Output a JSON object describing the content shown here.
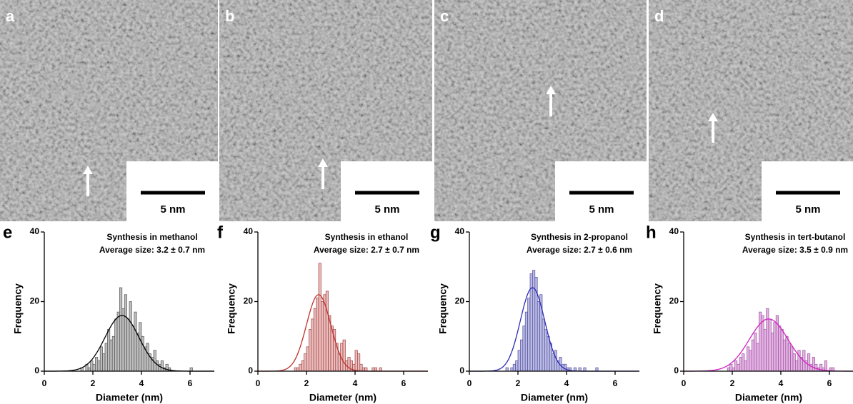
{
  "panels": [
    {
      "label": "a",
      "scale_bar": "5 nm"
    },
    {
      "label": "b",
      "scale_bar": "5 nm"
    },
    {
      "label": "c",
      "scale_bar": "5 nm"
    },
    {
      "label": "d",
      "scale_bar": "5 nm"
    }
  ],
  "chart_data": [
    {
      "type": "histogram",
      "label": "e",
      "title": "Synthesis in methanol",
      "subtitle": "Average size: 3.2 ± 0.7 nm",
      "xlabel": "Diameter (nm)",
      "ylabel": "Frequency",
      "bins": [
        1.2,
        1.3,
        1.4,
        1.5,
        1.6,
        1.7,
        1.8,
        1.9,
        2.0,
        2.1,
        2.2,
        2.3,
        2.4,
        2.5,
        2.6,
        2.7,
        2.8,
        2.9,
        3.0,
        3.1,
        3.2,
        3.3,
        3.4,
        3.5,
        3.6,
        3.7,
        3.8,
        3.9,
        4.0,
        4.1,
        4.2,
        4.3,
        4.4,
        4.5,
        4.6,
        4.7,
        4.8,
        4.9,
        5.0,
        5.1,
        5.2,
        5.3,
        5.4,
        5.5,
        5.6,
        5.7,
        5.8,
        5.9,
        6.0,
        6.1,
        6.2
      ],
      "counts": [
        0,
        0,
        0,
        1,
        0,
        2,
        1,
        3,
        2,
        4,
        3,
        7,
        5,
        8,
        12,
        9,
        10,
        15,
        17,
        24,
        18,
        22,
        15,
        20,
        13,
        17,
        11,
        14,
        10,
        7,
        8,
        5,
        4,
        6,
        3,
        2,
        3,
        1,
        2,
        1,
        0,
        0,
        0,
        0,
        0,
        0,
        0,
        0,
        1,
        0
      ],
      "color": "#bdbdbd",
      "edgecolor": "#555555",
      "fit": {
        "mean": 3.2,
        "sd": 0.7,
        "amplitude": 16,
        "color": "#000000"
      },
      "xlim": [
        0,
        7
      ],
      "ylim": [
        0,
        40
      ],
      "xticks": [
        0,
        2,
        4,
        6
      ],
      "yticks": [
        0,
        20,
        40
      ]
    },
    {
      "type": "histogram",
      "label": "f",
      "title": "Synthesis in ethanol",
      "subtitle": "Average size: 2.7 ± 0.7 nm",
      "xlabel": "Diameter (nm)",
      "ylabel": "Frequency",
      "bins": [
        1.2,
        1.3,
        1.4,
        1.5,
        1.6,
        1.7,
        1.8,
        1.9,
        2.0,
        2.1,
        2.2,
        2.3,
        2.4,
        2.5,
        2.6,
        2.7,
        2.8,
        2.9,
        3.0,
        3.1,
        3.2,
        3.3,
        3.4,
        3.5,
        3.6,
        3.7,
        3.8,
        3.9,
        4.0,
        4.1,
        4.2,
        4.3,
        4.4,
        4.5,
        4.6,
        4.7,
        4.8,
        4.9,
        5.0,
        5.1,
        5.2,
        5.3,
        5.4,
        5.5,
        5.6,
        5.7,
        5.8,
        5.9,
        6.0,
        6.1,
        6.2
      ],
      "counts": [
        0,
        0,
        0,
        1,
        1,
        2,
        3,
        5,
        7,
        12,
        15,
        18,
        21,
        31,
        20,
        22,
        23,
        16,
        13,
        12,
        8,
        5,
        8,
        9,
        3,
        4,
        3,
        2,
        6,
        5,
        2,
        1,
        1,
        0,
        0,
        1,
        1,
        0,
        1,
        0,
        0,
        0,
        0,
        0,
        0,
        0,
        0,
        0,
        0,
        0
      ],
      "color": "#eabcbc",
      "edgecolor": "#a04040",
      "fit": {
        "mean": 2.5,
        "sd": 0.5,
        "amplitude": 22,
        "color": "#c0302a"
      },
      "xlim": [
        0,
        7
      ],
      "ylim": [
        0,
        40
      ],
      "xticks": [
        0,
        2,
        4,
        6
      ],
      "yticks": [
        0,
        20,
        40
      ]
    },
    {
      "type": "histogram",
      "label": "g",
      "title": "Synthesis in 2-propanol",
      "subtitle": "Average size: 2.7 ± 0.6 nm",
      "xlabel": "Diameter (nm)",
      "ylabel": "Frequency",
      "bins": [
        1.2,
        1.3,
        1.4,
        1.5,
        1.6,
        1.7,
        1.8,
        1.9,
        2.0,
        2.1,
        2.2,
        2.3,
        2.4,
        2.5,
        2.6,
        2.7,
        2.8,
        2.9,
        3.0,
        3.1,
        3.2,
        3.3,
        3.4,
        3.5,
        3.6,
        3.7,
        3.8,
        3.9,
        4.0,
        4.1,
        4.2,
        4.3,
        4.4,
        4.5,
        4.6,
        4.7,
        4.8,
        4.9,
        5.0,
        5.1,
        5.2,
        5.3,
        5.4,
        5.5,
        5.6,
        5.7,
        5.8,
        5.9,
        6.0,
        6.1,
        6.2
      ],
      "counts": [
        0,
        0,
        0,
        1,
        0,
        1,
        2,
        3,
        6,
        9,
        13,
        17,
        21,
        28,
        29,
        27,
        20,
        22,
        15,
        12,
        10,
        8,
        5,
        6,
        3,
        4,
        2,
        2,
        1,
        1,
        0,
        1,
        0,
        1,
        0,
        1,
        0,
        0,
        0,
        0,
        1,
        0,
        0,
        0,
        0,
        0,
        0,
        0,
        0,
        0
      ],
      "color": "#babae2",
      "edgecolor": "#5050a0",
      "fit": {
        "mean": 2.6,
        "sd": 0.5,
        "amplitude": 24,
        "color": "#2b2bb8"
      },
      "xlim": [
        0,
        7
      ],
      "ylim": [
        0,
        40
      ],
      "xticks": [
        0,
        2,
        4,
        6
      ],
      "yticks": [
        0,
        20,
        40
      ]
    },
    {
      "type": "histogram",
      "label": "h",
      "title": "Synthesis in tert-butanol",
      "subtitle": "Average size: 3.5 ± 0.9 nm",
      "xlabel": "Diameter (nm)",
      "ylabel": "Frequency",
      "bins": [
        1.2,
        1.3,
        1.4,
        1.5,
        1.6,
        1.7,
        1.8,
        1.9,
        2.0,
        2.1,
        2.2,
        2.3,
        2.4,
        2.5,
        2.6,
        2.7,
        2.8,
        2.9,
        3.0,
        3.1,
        3.2,
        3.3,
        3.4,
        3.5,
        3.6,
        3.7,
        3.8,
        3.9,
        4.0,
        4.1,
        4.2,
        4.3,
        4.4,
        4.5,
        4.6,
        4.7,
        4.8,
        4.9,
        5.0,
        5.1,
        5.2,
        5.3,
        5.4,
        5.5,
        5.6,
        5.7,
        5.8,
        5.9,
        6.0,
        6.1,
        6.2
      ],
      "counts": [
        0,
        0,
        0,
        0,
        0,
        0,
        1,
        2,
        1,
        3,
        2,
        4,
        5,
        3,
        7,
        6,
        9,
        11,
        8,
        17,
        16,
        12,
        18,
        15,
        11,
        14,
        16,
        13,
        12,
        9,
        10,
        8,
        7,
        5,
        3,
        6,
        4,
        6,
        3,
        5,
        2,
        4,
        2,
        1,
        2,
        1,
        3,
        0,
        1,
        1
      ],
      "color": "#e2b4e2",
      "edgecolor": "#a050a0",
      "fit": {
        "mean": 3.5,
        "sd": 0.8,
        "amplitude": 15,
        "color": "#d020c0"
      },
      "xlim": [
        0,
        7
      ],
      "ylim": [
        0,
        40
      ],
      "xticks": [
        0,
        2,
        4,
        6
      ],
      "yticks": [
        0,
        20,
        40
      ]
    }
  ]
}
